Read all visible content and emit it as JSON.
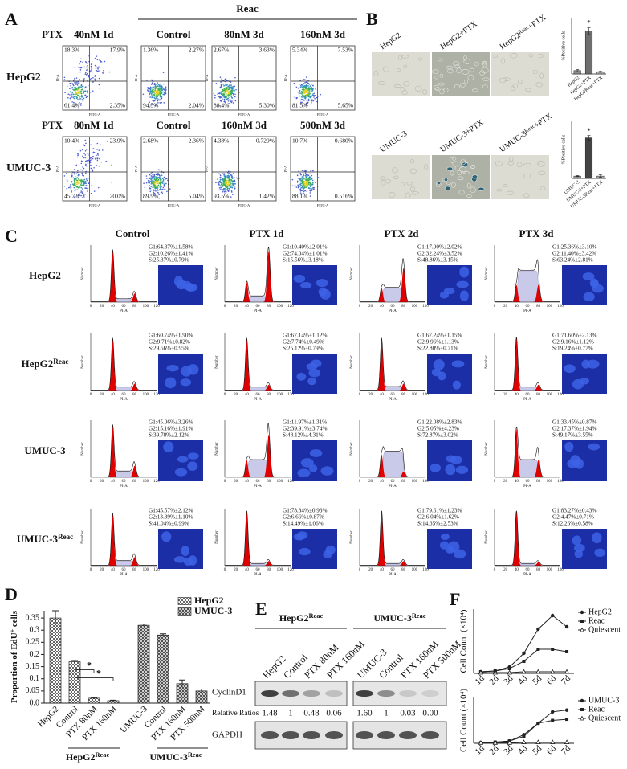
{
  "panel_labels": [
    "A",
    "B",
    "C",
    "D",
    "E",
    "F"
  ],
  "panel_a": {
    "ptx": "PTX",
    "reac": "Reac",
    "x_axis": "FITC-A",
    "y_axis": "PI-A",
    "rows": [
      {
        "label": "HepG2",
        "treatment": "40nM 1d",
        "columns": [
          "Control",
          "80nM 3d",
          "160nM 3d"
        ],
        "plots": [
          [
            "18.3%",
            "17.9%",
            "61.4%",
            "2.35%"
          ],
          [
            "1.36%",
            "2.27%",
            "94.3%",
            "2.04%"
          ],
          [
            "2.67%",
            "3.63%",
            "88.4%",
            "5.30%"
          ],
          [
            "5.34%",
            "7.53%",
            "81.5%",
            "5.65%"
          ]
        ]
      },
      {
        "label": "UMUC-3",
        "treatment": "80nM 1d",
        "columns": [
          "Control",
          "160nM 3d",
          "500nM 3d"
        ],
        "plots": [
          [
            "10.4%",
            "23.9%",
            "45.7%",
            "20.0%"
          ],
          [
            "2.68%",
            "2.36%",
            "89.9%",
            "5.04%"
          ],
          [
            "4.38%",
            "0.729%",
            "93.5%",
            "1.42%"
          ],
          [
            "10.7%",
            "0.680%",
            "88.1%",
            "0.516%"
          ]
        ]
      }
    ]
  },
  "panel_b": {
    "rows": [
      [
        {
          "text": "HepG2"
        },
        {
          "text": "HepG2+PTX"
        },
        {
          "text": "HepG2",
          "sup": "Reac",
          "after": "+PTX"
        }
      ],
      [
        {
          "text": "UMUC-3"
        },
        {
          "text": "UMUC-3+PTX"
        },
        {
          "text": "UMUC-3",
          "sup": "Reac",
          "after": "+PTX"
        }
      ]
    ]
  },
  "panel_c": {
    "columns": [
      "Control",
      "PTX 1d",
      "PTX 2d",
      "PTX 3d"
    ],
    "rows": [
      {
        "text": "HepG2"
      },
      {
        "text": "HepG2",
        "sup": "Reac"
      },
      {
        "text": "UMUC-3"
      },
      {
        "text": "UMUC-3",
        "sup": "Reac"
      }
    ],
    "x_axis": "PI-A",
    "y_axis": "Number",
    "xticks": [
      "0",
      "20",
      "40",
      "60",
      "80",
      "100",
      "120"
    ],
    "stats": [
      [
        [
          "G1:64.37%±1.58%",
          "G2:10.26%±1.41%",
          "S:25.37%±0.79%"
        ],
        [
          "G1:10.40%±2.01%",
          "G2:74.04%±1.01%",
          "S:15.56%±3.18%"
        ],
        [
          "G1:17.90%±2.02%",
          "G2:32.24%±3.52%",
          "S:48.86%±3.15%"
        ],
        [
          "G1:25.36%±3.10%",
          "G2:11.40%±3.42%",
          "S:63.24%±2.81%"
        ]
      ],
      [
        [
          "G1:60.74%±1.90%",
          "G2:9.71%±0.82%",
          "S:29.56%±0.95%"
        ],
        [
          "G1:67.14%±1.12%",
          "G2:7.74%±0.49%",
          "S:25.12%±0.79%"
        ],
        [
          "G1:67.24%±1.15%",
          "G2:9.96%±1.13%",
          "S:22.80%±0.71%"
        ],
        [
          "G1:71.60%±2.13%",
          "G2:9.16%±1.12%",
          "S:19.24%±0.77%"
        ]
      ],
      [
        [
          "G1:45.06%±3.26%",
          "G2:15.16%±1.91%",
          "S:39.78%±2.12%"
        ],
        [
          "G1:11.97%±1.31%",
          "G2:39.91%±3.74%",
          "S:48.12%±4.31%"
        ],
        [
          "G1:22.08%±2.83%",
          "G2:5.05%±4.23%",
          "S:72.87%±3.02%"
        ],
        [
          "G1:33.45%±0.87%",
          "G2:17.37%±1.94%",
          "S:49.17%±3.55%"
        ]
      ],
      [
        [
          "G1:45.57%±2.12%",
          "G2:13.39%±1.10%",
          "S:41.04%±0.99%"
        ],
        [
          "G1:78.84%±0.93%",
          "G2:6.66%±0.87%",
          "S:14.49%±1.06%"
        ],
        [
          "G1:79.61%±1.23%",
          "G2:6.04%±1.62%",
          "S:14.35%±2.53%"
        ],
        [
          "G1:83.27%±0.43%",
          "G2:4.47%±0.71%",
          "S:12.26%±0.58%"
        ]
      ]
    ]
  },
  "panel_e": {
    "groups": [
      {
        "text": "HepG2",
        "sup": "Reac"
      },
      {
        "text": "UMUC-3",
        "sup": "Reac"
      }
    ],
    "lanes": [
      "HepG2",
      "Control",
      "PTX 80nM",
      "PTX 160nM",
      "UMUC-3",
      "Control",
      "PTX 160nM",
      "PTX 500nM"
    ],
    "rows": [
      "CyclinD1",
      "Relative Ratios",
      "GAPDH"
    ],
    "ratios": [
      "1.48",
      "1",
      "0.48",
      "0.06",
      "1.60",
      "1",
      "0.03",
      "0.00"
    ]
  },
  "chart_data": [
    {
      "type": "bar",
      "ylabel": "%Positive cells",
      "categories": [
        "HepG2",
        "HepG2+PTX",
        "HepG2Reac+PTX"
      ],
      "values": [
        3,
        38,
        2
      ],
      "errors": [
        1,
        3,
        0.5
      ],
      "colors": [
        "#8c8c8c",
        "#6e6e6e",
        "#b0b0b0"
      ],
      "ylim": [
        0,
        50
      ],
      "annotations": [
        "*"
      ]
    },
    {
      "type": "bar",
      "ylabel": "%Positive cells",
      "categories": [
        "UMUC-3",
        "UMUC-3+PTX",
        "UMUC-3Reac+PTX"
      ],
      "values": [
        2,
        35,
        2
      ],
      "errors": [
        0.5,
        2,
        1
      ],
      "colors": [
        "#9a9a9a",
        "#444444",
        "#aaaaaa"
      ],
      "ylim": [
        0,
        50
      ],
      "annotations": [
        "*"
      ]
    },
    {
      "type": "bar",
      "ylabel": {
        "text": "Proportion of EdU",
        "sup": "+",
        "after": " cells"
      },
      "categories": [
        "HepG2",
        "Control",
        "PTX 80nM",
        "PTX 160nM",
        "UMUC-3",
        "Control",
        "PTX 160nM",
        "PTX 500nM"
      ],
      "groups": [
        {
          "text": "HepG2",
          "sup": "Reac"
        },
        {
          "text": "UMUC-3",
          "sup": "Reac"
        }
      ],
      "series": [
        {
          "name": "HepG2",
          "color": "#666666",
          "pattern": "check",
          "values": [
            0.35,
            0.17,
            0.02,
            0.01,
            null,
            null,
            null,
            null
          ],
          "errors": [
            0.03,
            0.005,
            0.003,
            0.002,
            null,
            null,
            null,
            null
          ]
        },
        {
          "name": "UMUC-3",
          "color": "#444444",
          "pattern": "hatch",
          "values": [
            null,
            null,
            null,
            null,
            0.32,
            0.28,
            0.08,
            0.05
          ],
          "errors": [
            null,
            null,
            null,
            null,
            0.005,
            0.005,
            0.015,
            0.008
          ]
        }
      ],
      "ylim": [
        0,
        0.38
      ],
      "yticks": [
        {
          "value": 0,
          "label": "0.0"
        },
        0.05,
        0.1,
        0.15,
        0.2,
        0.25,
        0.3,
        0.35
      ],
      "legend": "upper right",
      "annotations": [
        "*",
        "*"
      ]
    },
    {
      "type": "line",
      "ylabel": "Cell Count (×10⁴)",
      "categories": [
        "1d",
        "2d",
        "3d",
        "4d",
        "5d",
        "6d",
        "7d"
      ],
      "series": [
        {
          "name": "HepG2",
          "color": "#222222",
          "marker": "circle",
          "values": [
            2,
            3,
            8,
            25,
            55,
            72,
            58
          ]
        },
        {
          "name": "Reac",
          "color": "#222222",
          "marker": "square",
          "values": [
            2,
            3,
            6,
            15,
            30,
            30,
            27
          ]
        },
        {
          "name": "Quiescent",
          "color": "#222222",
          "marker": "triangle",
          "values": [
            1,
            1,
            1,
            2,
            2,
            2,
            2
          ]
        }
      ],
      "ylim": [
        0,
        80
      ],
      "legend": "right"
    },
    {
      "type": "line",
      "ylabel": "Cell Count (×10⁴)",
      "categories": [
        "1d",
        "2d",
        "3d",
        "4d",
        "5d",
        "6d",
        "7d"
      ],
      "series": [
        {
          "name": "UMUC-3",
          "color": "#222222",
          "marker": "circle",
          "values": [
            1,
            2,
            4,
            15,
            35,
            55,
            58
          ]
        },
        {
          "name": "Reac",
          "color": "#222222",
          "marker": "square",
          "values": [
            1,
            2,
            4,
            12,
            35,
            40,
            42
          ]
        },
        {
          "name": "Quiescent",
          "color": "#222222",
          "marker": "triangle",
          "values": [
            1,
            1,
            1,
            2,
            2,
            2,
            2
          ]
        }
      ],
      "ylim": [
        0,
        80
      ],
      "legend": "right"
    }
  ]
}
